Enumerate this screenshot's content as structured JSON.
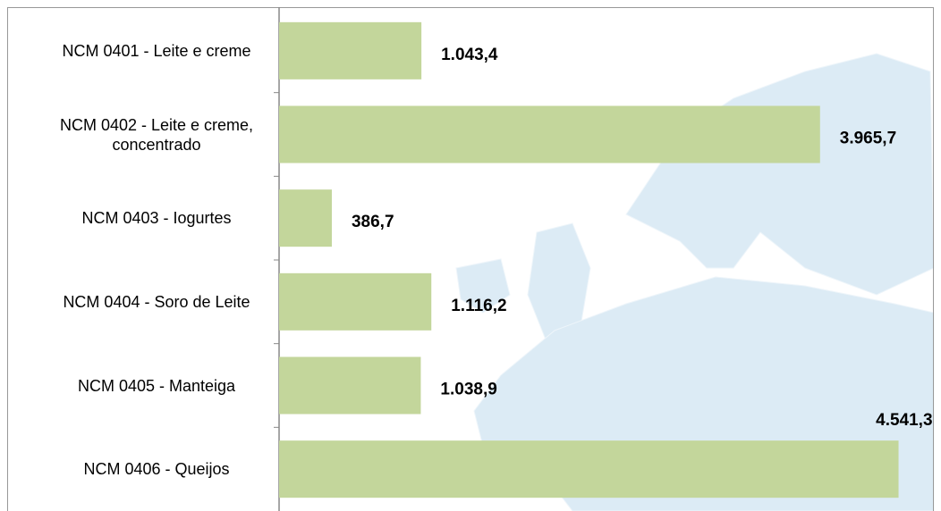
{
  "chart_data": {
    "type": "bar",
    "orientation": "horizontal",
    "categories": [
      "NCM 0401 - Leite e creme",
      "NCM 0402 - Leite e creme, concentrado",
      "NCM 0403 - Iogurtes",
      "NCM 0404 - Soro de Leite",
      "NCM 0405 - Manteiga",
      "NCM 0406 - Queijos"
    ],
    "values": [
      1043.4,
      3965.7,
      386.7,
      1116.2,
      1038.9,
      4541.3
    ],
    "value_labels": [
      "1.043,4",
      "3.965,7",
      "386,7",
      "1.116,2",
      "1.038,9",
      "4.541,3"
    ],
    "color": "#c3d69b",
    "xlim": [
      0,
      4800
    ]
  }
}
